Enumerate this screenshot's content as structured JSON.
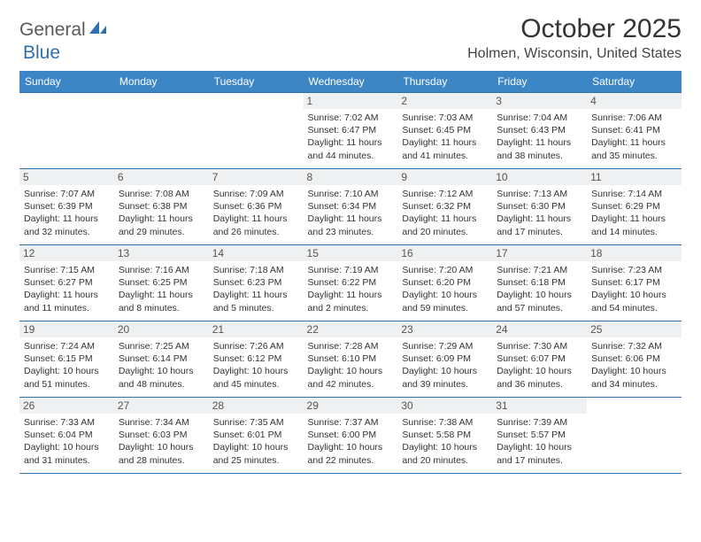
{
  "logo": {
    "text1": "General",
    "text2": "Blue"
  },
  "title": "October 2025",
  "location": "Holmen, Wisconsin, United States",
  "colors": {
    "header_bg": "#3d86c6",
    "header_text": "#ffffff",
    "row_border": "#2f6fb0",
    "daynum_bg": "#eef0f1",
    "logo_blue": "#2f6fb0",
    "logo_gray": "#5a5a5a"
  },
  "weekdays": [
    "Sunday",
    "Monday",
    "Tuesday",
    "Wednesday",
    "Thursday",
    "Friday",
    "Saturday"
  ],
  "weeks": [
    [
      null,
      null,
      null,
      {
        "d": "1",
        "sr": "7:02 AM",
        "ss": "6:47 PM",
        "dh": "11",
        "dm": "44"
      },
      {
        "d": "2",
        "sr": "7:03 AM",
        "ss": "6:45 PM",
        "dh": "11",
        "dm": "41"
      },
      {
        "d": "3",
        "sr": "7:04 AM",
        "ss": "6:43 PM",
        "dh": "11",
        "dm": "38"
      },
      {
        "d": "4",
        "sr": "7:06 AM",
        "ss": "6:41 PM",
        "dh": "11",
        "dm": "35"
      }
    ],
    [
      {
        "d": "5",
        "sr": "7:07 AM",
        "ss": "6:39 PM",
        "dh": "11",
        "dm": "32"
      },
      {
        "d": "6",
        "sr": "7:08 AM",
        "ss": "6:38 PM",
        "dh": "11",
        "dm": "29"
      },
      {
        "d": "7",
        "sr": "7:09 AM",
        "ss": "6:36 PM",
        "dh": "11",
        "dm": "26"
      },
      {
        "d": "8",
        "sr": "7:10 AM",
        "ss": "6:34 PM",
        "dh": "11",
        "dm": "23"
      },
      {
        "d": "9",
        "sr": "7:12 AM",
        "ss": "6:32 PM",
        "dh": "11",
        "dm": "20"
      },
      {
        "d": "10",
        "sr": "7:13 AM",
        "ss": "6:30 PM",
        "dh": "11",
        "dm": "17"
      },
      {
        "d": "11",
        "sr": "7:14 AM",
        "ss": "6:29 PM",
        "dh": "11",
        "dm": "14"
      }
    ],
    [
      {
        "d": "12",
        "sr": "7:15 AM",
        "ss": "6:27 PM",
        "dh": "11",
        "dm": "11"
      },
      {
        "d": "13",
        "sr": "7:16 AM",
        "ss": "6:25 PM",
        "dh": "11",
        "dm": "8"
      },
      {
        "d": "14",
        "sr": "7:18 AM",
        "ss": "6:23 PM",
        "dh": "11",
        "dm": "5"
      },
      {
        "d": "15",
        "sr": "7:19 AM",
        "ss": "6:22 PM",
        "dh": "11",
        "dm": "2"
      },
      {
        "d": "16",
        "sr": "7:20 AM",
        "ss": "6:20 PM",
        "dh": "10",
        "dm": "59"
      },
      {
        "d": "17",
        "sr": "7:21 AM",
        "ss": "6:18 PM",
        "dh": "10",
        "dm": "57"
      },
      {
        "d": "18",
        "sr": "7:23 AM",
        "ss": "6:17 PM",
        "dh": "10",
        "dm": "54"
      }
    ],
    [
      {
        "d": "19",
        "sr": "7:24 AM",
        "ss": "6:15 PM",
        "dh": "10",
        "dm": "51"
      },
      {
        "d": "20",
        "sr": "7:25 AM",
        "ss": "6:14 PM",
        "dh": "10",
        "dm": "48"
      },
      {
        "d": "21",
        "sr": "7:26 AM",
        "ss": "6:12 PM",
        "dh": "10",
        "dm": "45"
      },
      {
        "d": "22",
        "sr": "7:28 AM",
        "ss": "6:10 PM",
        "dh": "10",
        "dm": "42"
      },
      {
        "d": "23",
        "sr": "7:29 AM",
        "ss": "6:09 PM",
        "dh": "10",
        "dm": "39"
      },
      {
        "d": "24",
        "sr": "7:30 AM",
        "ss": "6:07 PM",
        "dh": "10",
        "dm": "36"
      },
      {
        "d": "25",
        "sr": "7:32 AM",
        "ss": "6:06 PM",
        "dh": "10",
        "dm": "34"
      }
    ],
    [
      {
        "d": "26",
        "sr": "7:33 AM",
        "ss": "6:04 PM",
        "dh": "10",
        "dm": "31"
      },
      {
        "d": "27",
        "sr": "7:34 AM",
        "ss": "6:03 PM",
        "dh": "10",
        "dm": "28"
      },
      {
        "d": "28",
        "sr": "7:35 AM",
        "ss": "6:01 PM",
        "dh": "10",
        "dm": "25"
      },
      {
        "d": "29",
        "sr": "7:37 AM",
        "ss": "6:00 PM",
        "dh": "10",
        "dm": "22"
      },
      {
        "d": "30",
        "sr": "7:38 AM",
        "ss": "5:58 PM",
        "dh": "10",
        "dm": "20"
      },
      {
        "d": "31",
        "sr": "7:39 AM",
        "ss": "5:57 PM",
        "dh": "10",
        "dm": "17"
      },
      null
    ]
  ],
  "labels": {
    "sunrise": "Sunrise:",
    "sunset": "Sunset:",
    "daylight": "Daylight:",
    "hours": "hours",
    "and": "and",
    "minutes": "minutes."
  }
}
